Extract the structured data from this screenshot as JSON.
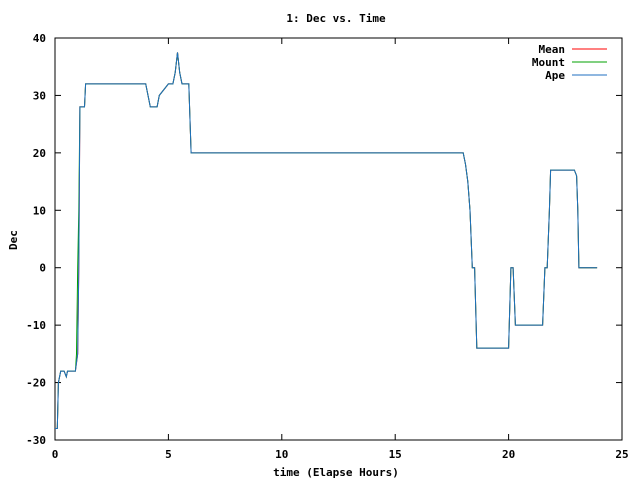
{
  "chart_data": {
    "type": "line",
    "title": "1: Dec vs. Time",
    "xlabel": "time (Elapse Hours)",
    "ylabel": "Dec",
    "xlim": [
      0,
      25
    ],
    "ylim": [
      -30,
      40
    ],
    "xticks": [
      0,
      5,
      10,
      15,
      20,
      25
    ],
    "yticks": [
      -30,
      -20,
      -10,
      0,
      10,
      20,
      30,
      40
    ],
    "grid": false,
    "legend_position": "top-right",
    "series": [
      {
        "name": "Mean",
        "color": "#ff0000",
        "x": [
          0.0,
          0.1,
          0.15,
          0.25,
          0.4,
          0.5,
          0.55,
          0.6,
          0.7,
          0.9,
          1.0,
          1.05,
          1.1,
          1.2,
          1.3,
          1.35,
          2.0,
          3.0,
          4.0,
          4.1,
          4.2,
          4.5,
          4.6,
          5.0,
          5.1,
          5.2,
          5.3,
          5.4,
          5.5,
          5.6,
          5.7,
          5.8,
          5.9,
          6.0,
          8.0,
          10.0,
          12.0,
          14.0,
          16.0,
          18.0,
          18.1,
          18.2,
          18.3,
          18.4,
          18.5,
          18.6,
          19.0,
          19.5,
          20.0,
          20.1,
          20.2,
          20.3,
          20.4,
          21.0,
          21.5,
          21.6,
          21.7,
          21.8,
          21.85,
          21.9,
          22.5,
          22.9,
          23.0,
          23.05,
          23.1,
          23.2,
          23.5,
          23.9
        ],
        "y": [
          -28,
          -28,
          -20,
          -18,
          -18,
          -19,
          -18,
          -18,
          -18,
          -18,
          -15,
          0,
          28,
          28,
          28,
          32,
          32,
          32,
          32,
          30,
          28,
          28,
          30,
          32,
          32,
          32,
          34,
          37.5,
          34,
          32,
          32,
          32,
          32,
          20,
          20,
          20,
          20,
          20,
          20,
          20,
          18,
          15,
          10,
          0,
          0,
          -14,
          -14,
          -14,
          -14,
          0,
          0,
          -10,
          -10,
          -10,
          -10,
          0,
          0,
          10,
          17,
          17,
          17,
          17,
          16,
          10,
          0,
          0,
          0,
          0
        ]
      },
      {
        "name": "Mount",
        "color": "#00a000",
        "x": [
          0.0,
          0.1,
          0.15,
          0.25,
          0.4,
          0.5,
          0.55,
          0.6,
          0.7,
          0.9,
          0.95,
          1.0,
          1.05,
          1.1,
          1.2,
          1.3,
          1.35,
          2.0,
          3.0,
          4.0,
          4.1,
          4.2,
          4.5,
          4.6,
          5.0,
          5.1,
          5.2,
          5.3,
          5.4,
          5.5,
          5.6,
          5.7,
          5.8,
          5.9,
          6.0,
          8.0,
          10.0,
          12.0,
          14.0,
          16.0,
          18.0,
          18.1,
          18.2,
          18.3,
          18.4,
          18.5,
          18.6,
          19.0,
          19.5,
          20.0,
          20.1,
          20.2,
          20.3,
          20.4,
          21.0,
          21.5,
          21.6,
          21.7,
          21.75,
          21.8,
          21.85,
          21.9,
          22.5,
          22.9,
          23.0,
          23.05,
          23.1,
          23.2,
          23.5,
          23.9
        ],
        "y": [
          -28,
          -28,
          -20,
          -18,
          -18,
          -19,
          -18,
          -18,
          -18,
          -18,
          -15,
          0,
          10,
          28,
          28,
          28,
          32,
          32,
          32,
          32,
          30,
          28,
          28,
          30,
          32,
          32,
          32,
          34,
          37.5,
          34,
          32,
          32,
          32,
          32,
          20,
          20,
          20,
          20,
          20,
          20,
          20,
          18,
          15,
          10,
          0,
          0,
          -14,
          -14,
          -14,
          -14,
          0,
          0,
          -10,
          -10,
          -10,
          -10,
          0,
          0,
          5,
          10,
          17,
          17,
          17,
          17,
          16,
          10,
          0,
          0,
          0,
          0
        ]
      },
      {
        "name": "Ape",
        "color": "#1f6fc0",
        "x": [
          0.0,
          0.1,
          0.15,
          0.25,
          0.4,
          0.5,
          0.55,
          0.6,
          0.7,
          0.9,
          1.0,
          1.05,
          1.1,
          1.2,
          1.3,
          1.35,
          2.0,
          3.0,
          4.0,
          4.1,
          4.2,
          4.5,
          4.6,
          5.0,
          5.1,
          5.2,
          5.3,
          5.4,
          5.5,
          5.6,
          5.7,
          5.8,
          5.9,
          6.0,
          8.0,
          10.0,
          12.0,
          14.0,
          16.0,
          18.0,
          18.1,
          18.2,
          18.3,
          18.4,
          18.5,
          18.6,
          19.0,
          19.5,
          20.0,
          20.1,
          20.2,
          20.3,
          20.4,
          21.0,
          21.5,
          21.6,
          21.7,
          21.8,
          21.85,
          21.9,
          22.5,
          22.9,
          23.0,
          23.05,
          23.1,
          23.2,
          23.5,
          23.9
        ],
        "y": [
          -28,
          -28,
          -20,
          -18,
          -18,
          -19,
          -18,
          -18,
          -18,
          -18,
          -15,
          0,
          28,
          28,
          28,
          32,
          32,
          32,
          32,
          30,
          28,
          28,
          30,
          32,
          32,
          32,
          34,
          37.5,
          34,
          32,
          32,
          32,
          32,
          20,
          20,
          20,
          20,
          20,
          20,
          20,
          18,
          15,
          10,
          0,
          0,
          -14,
          -14,
          -14,
          -14,
          0,
          0,
          -10,
          -10,
          -10,
          -10,
          0,
          0,
          10,
          17,
          17,
          17,
          17,
          16,
          10,
          0,
          0,
          0,
          0
        ]
      }
    ]
  }
}
